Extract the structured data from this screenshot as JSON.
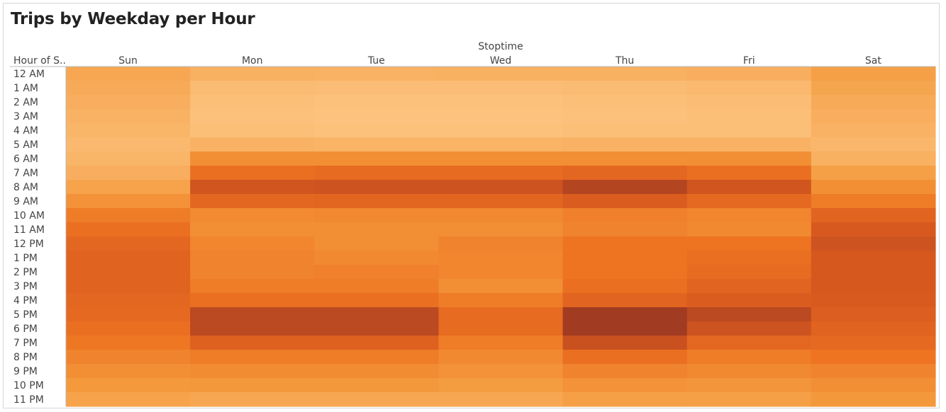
{
  "chart_data": {
    "type": "heatmap",
    "title": "Trips by Weekday per Hour",
    "column_header": "Stoptime",
    "row_header": "Hour of S..",
    "columns": [
      "Sun",
      "Mon",
      "Tue",
      "Wed",
      "Thu",
      "Fri",
      "Sat"
    ],
    "rows": [
      "12 AM",
      "1 AM",
      "2 AM",
      "3 AM",
      "4 AM",
      "5 AM",
      "6 AM",
      "7 AM",
      "8 AM",
      "9 AM",
      "10 AM",
      "11 AM",
      "12 PM",
      "1 PM",
      "2 PM",
      "3 PM",
      "4 PM",
      "5 PM",
      "6 PM",
      "7 PM",
      "8 PM",
      "9 PM",
      "10 PM",
      "11 PM"
    ],
    "values": [
      [
        0.18,
        0.13,
        0.12,
        0.13,
        0.13,
        0.14,
        0.22
      ],
      [
        0.16,
        0.07,
        0.06,
        0.06,
        0.07,
        0.08,
        0.19
      ],
      [
        0.14,
        0.05,
        0.04,
        0.04,
        0.05,
        0.06,
        0.16
      ],
      [
        0.12,
        0.04,
        0.03,
        0.03,
        0.04,
        0.05,
        0.14
      ],
      [
        0.1,
        0.05,
        0.04,
        0.04,
        0.05,
        0.05,
        0.12
      ],
      [
        0.08,
        0.12,
        0.11,
        0.11,
        0.12,
        0.12,
        0.09
      ],
      [
        0.1,
        0.32,
        0.33,
        0.33,
        0.33,
        0.32,
        0.13
      ],
      [
        0.14,
        0.55,
        0.58,
        0.58,
        0.62,
        0.55,
        0.22
      ],
      [
        0.2,
        0.78,
        0.8,
        0.8,
        0.92,
        0.78,
        0.32
      ],
      [
        0.3,
        0.62,
        0.64,
        0.64,
        0.72,
        0.6,
        0.45
      ],
      [
        0.45,
        0.35,
        0.36,
        0.36,
        0.42,
        0.38,
        0.65
      ],
      [
        0.55,
        0.32,
        0.33,
        0.33,
        0.4,
        0.36,
        0.75
      ],
      [
        0.62,
        0.38,
        0.33,
        0.4,
        0.5,
        0.5,
        0.8
      ],
      [
        0.66,
        0.4,
        0.36,
        0.38,
        0.5,
        0.55,
        0.76
      ],
      [
        0.66,
        0.4,
        0.42,
        0.38,
        0.5,
        0.58,
        0.76
      ],
      [
        0.66,
        0.45,
        0.45,
        0.33,
        0.55,
        0.65,
        0.76
      ],
      [
        0.62,
        0.55,
        0.55,
        0.45,
        0.65,
        0.72,
        0.74
      ],
      [
        0.6,
        0.88,
        0.88,
        0.58,
        1.0,
        0.88,
        0.7
      ],
      [
        0.55,
        0.88,
        0.88,
        0.58,
        1.0,
        0.8,
        0.66
      ],
      [
        0.48,
        0.68,
        0.68,
        0.45,
        0.82,
        0.62,
        0.6
      ],
      [
        0.4,
        0.45,
        0.45,
        0.36,
        0.55,
        0.45,
        0.5
      ],
      [
        0.32,
        0.34,
        0.34,
        0.3,
        0.4,
        0.36,
        0.4
      ],
      [
        0.25,
        0.26,
        0.26,
        0.24,
        0.3,
        0.28,
        0.32
      ],
      [
        0.2,
        0.18,
        0.18,
        0.18,
        0.22,
        0.22,
        0.26
      ]
    ],
    "value_scale": "relative trip density (0 = lightest, 1 = darkest)",
    "color_range": [
      "#fdc887",
      "#f49a3d",
      "#ee7422",
      "#d8591f",
      "#a13b22"
    ]
  }
}
